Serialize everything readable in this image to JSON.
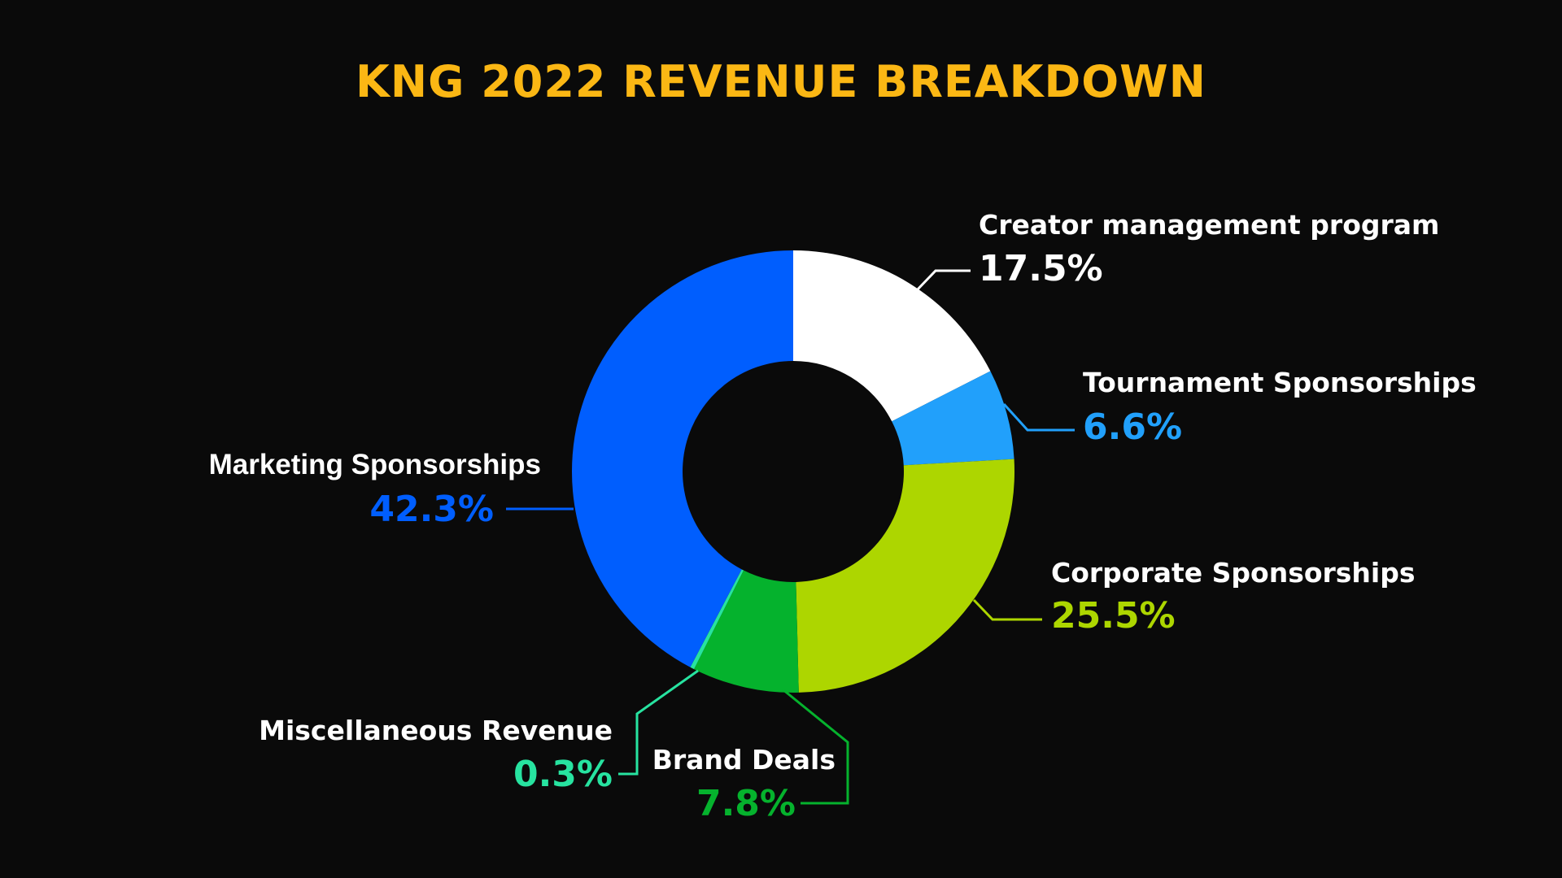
{
  "colors": {
    "background": "#0a0a0a",
    "title": "#fbb714",
    "label_name": "#ffffff"
  },
  "chart_data": {
    "type": "pie",
    "variant": "donut",
    "title": "KNG 2022 REVENUE BREAKDOWN",
    "unit": "%",
    "slices": [
      {
        "label": "Creator management program",
        "value": 17.5,
        "display": "17.5%",
        "color": "#ffffff"
      },
      {
        "label": "Tournament Sponsorships",
        "value": 6.6,
        "display": "6.6%",
        "color": "#21a0fb"
      },
      {
        "label": "Corporate Sponsorships",
        "value": 25.5,
        "display": "25.5%",
        "color": "#add600"
      },
      {
        "label": "Brand Deals",
        "value": 7.8,
        "display": "7.8%",
        "color": "#05b22d"
      },
      {
        "label": "Miscellaneous Revenue",
        "value": 0.3,
        "display": "0.3%",
        "color": "#27e3a0"
      },
      {
        "label": "Marketing Sponsorships",
        "value": 42.3,
        "display": "42.3%",
        "color": "#005efe"
      }
    ]
  }
}
